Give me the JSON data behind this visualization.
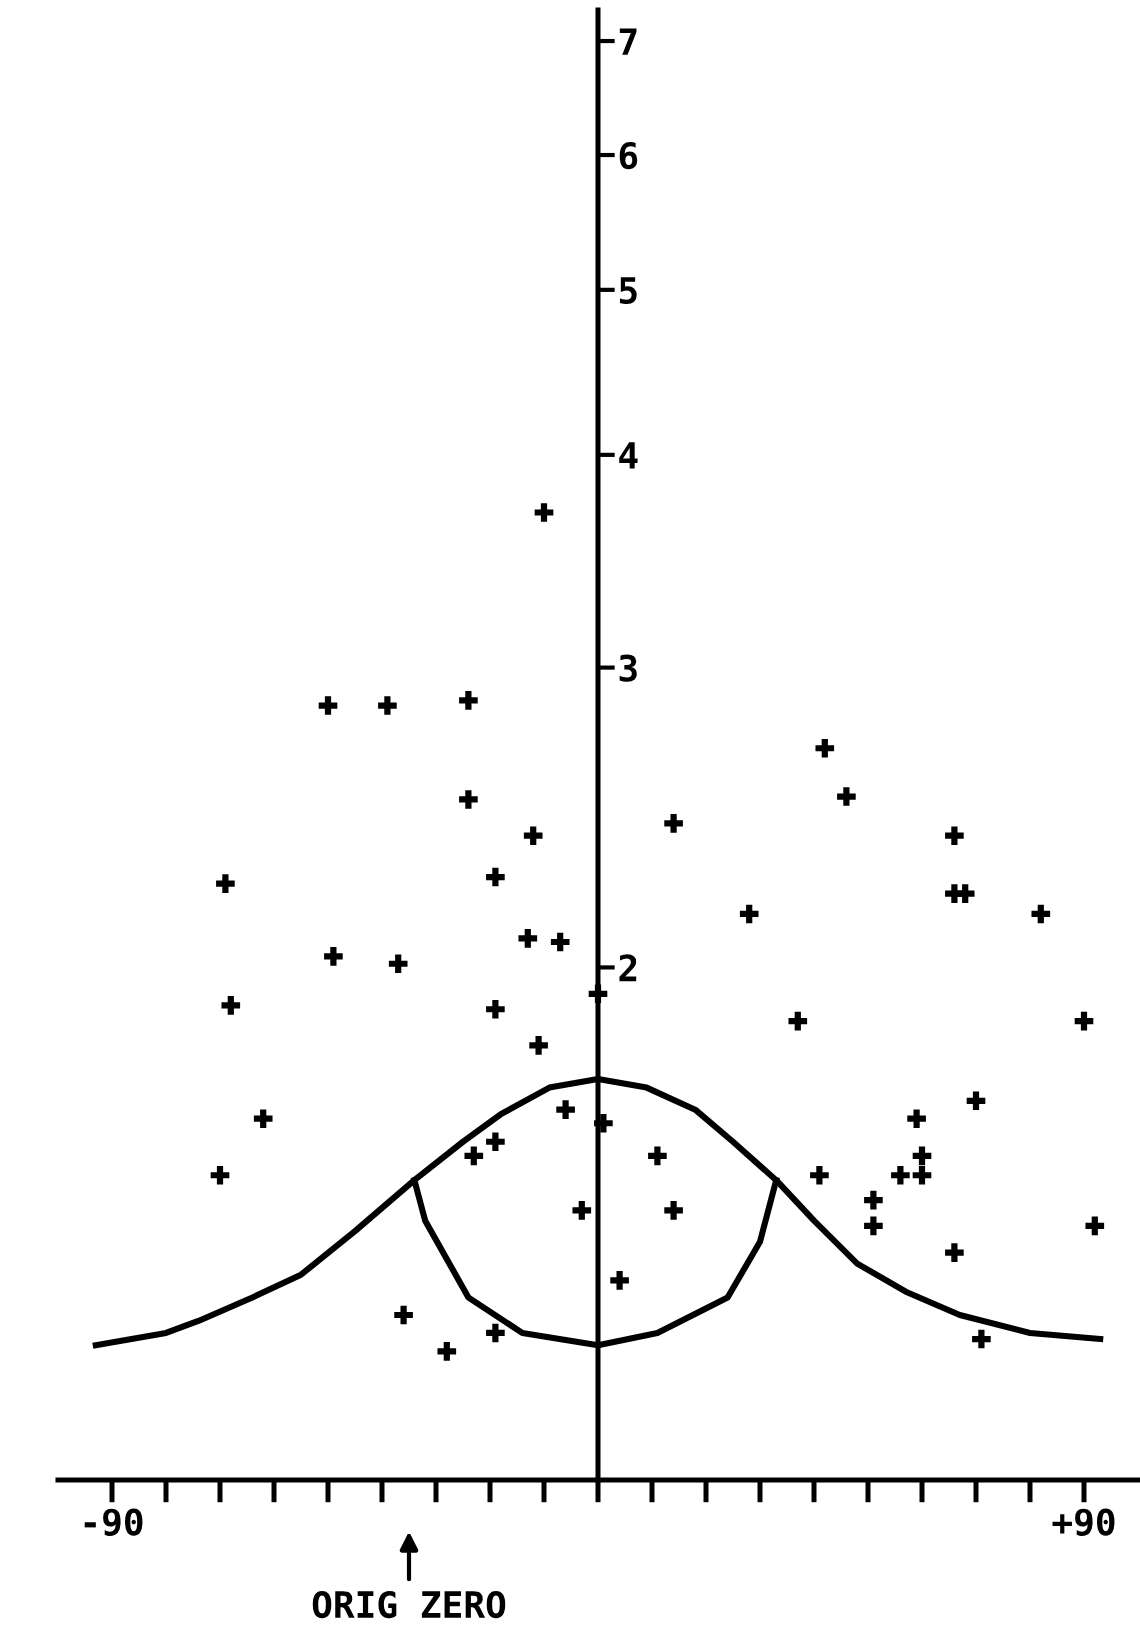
{
  "chart_data": {
    "type": "scatter",
    "log": "y",
    "marker": "cross",
    "grid": false,
    "legend": false,
    "xlim": [
      -100,
      100
    ],
    "ylim": [
      1,
      7.3
    ],
    "xticks": [
      -90,
      {
        "value": -80,
        "label": null
      },
      {
        "value": -70,
        "label": null
      },
      {
        "value": -60,
        "label": null
      },
      {
        "value": -50,
        "label": null
      },
      {
        "value": -40,
        "label": null
      },
      {
        "value": -30,
        "label": null
      },
      {
        "value": -20,
        "label": null
      },
      {
        "value": -10,
        "label": null
      },
      {
        "value": 0,
        "label": null
      },
      {
        "value": 10,
        "label": null
      },
      {
        "value": 20,
        "label": null
      },
      {
        "value": 30,
        "label": null
      },
      {
        "value": 40,
        "label": null
      },
      {
        "value": 50,
        "label": null
      },
      {
        "value": 60,
        "label": null
      },
      {
        "value": 70,
        "label": null
      },
      {
        "value": 80,
        "label": null
      },
      {
        "value": 90,
        "label": "+90"
      }
    ],
    "yticks": [
      2,
      3,
      4,
      5,
      6,
      7
    ],
    "annotations": [
      "ORIG ZERO"
    ],
    "series": [
      {
        "color": "#000000",
        "x": [
          -10,
          -50,
          -39,
          -24,
          -24,
          -12,
          -19,
          -69,
          -49,
          -37,
          -13,
          -7,
          -68,
          -19,
          -11,
          -62,
          -70,
          -6,
          -19,
          -23,
          -3,
          -36,
          -28,
          -19,
          0,
          14,
          42,
          46,
          66,
          66,
          68,
          82,
          28,
          37,
          90,
          1,
          11,
          59,
          70,
          41,
          56,
          60,
          60,
          51,
          51,
          14,
          92,
          66,
          4,
          71
        ],
        "values": [
          3.7,
          2.85,
          2.85,
          2.87,
          2.51,
          2.39,
          2.26,
          2.24,
          2.03,
          2.01,
          2.08,
          2.07,
          1.9,
          1.89,
          1.8,
          1.63,
          1.51,
          1.65,
          1.58,
          1.55,
          1.44,
          1.25,
          1.19,
          1.22,
          1.93,
          2.43,
          2.69,
          2.52,
          2.39,
          2.21,
          2.21,
          2.15,
          2.15,
          1.86,
          1.86,
          1.62,
          1.55,
          1.63,
          1.67,
          1.51,
          1.51,
          1.55,
          1.51,
          1.46,
          1.41,
          1.44,
          1.41,
          1.36,
          1.31,
          1.21
        ]
      },
      {
        "type": "line",
        "marker": "none",
        "color": "#000000",
        "x": [
          -93,
          -80,
          -74,
          -64,
          -55,
          -45,
          -34,
          -25,
          -18,
          -9,
          0,
          9,
          18,
          25,
          33,
          40,
          48,
          57,
          67,
          80,
          93
        ],
        "values": [
          1.2,
          1.22,
          1.24,
          1.28,
          1.32,
          1.4,
          1.5,
          1.58,
          1.64,
          1.7,
          1.72,
          1.7,
          1.65,
          1.58,
          1.5,
          1.42,
          1.34,
          1.29,
          1.25,
          1.22,
          1.21
        ]
      },
      {
        "type": "line",
        "marker": "none",
        "color": "#000000",
        "x": [
          -34,
          -32,
          -24,
          -14,
          0,
          11,
          24,
          30,
          33
        ],
        "values": [
          1.5,
          1.42,
          1.28,
          1.22,
          1.2,
          1.22,
          1.28,
          1.38,
          1.5
        ]
      }
    ]
  }
}
